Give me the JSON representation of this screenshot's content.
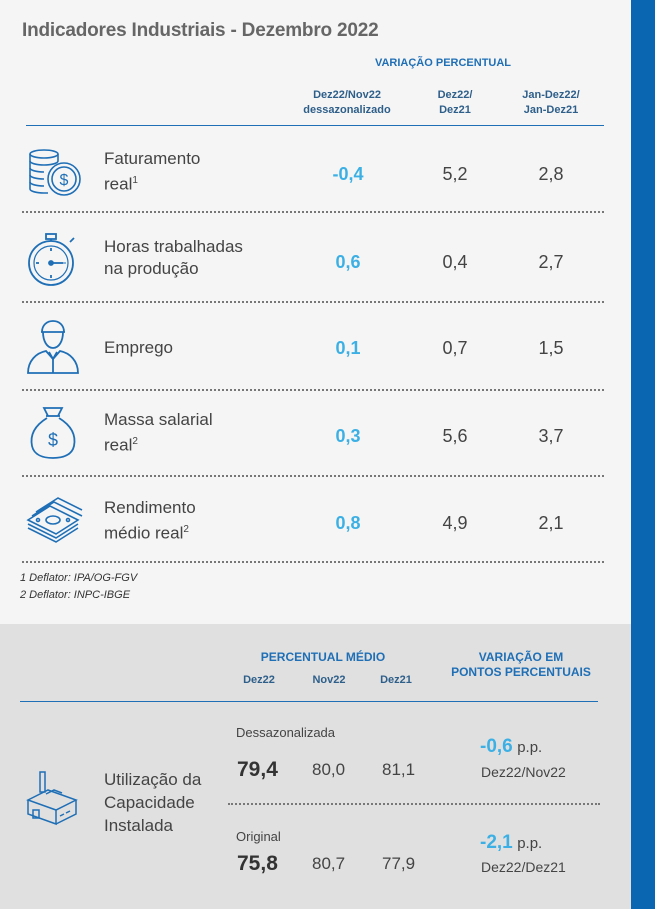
{
  "title": "Indicadores Industriais - Dezembro 2022",
  "variacao_header": "VARIAÇÃO PERCENTUAL",
  "columns": {
    "c1_line1": "Dez22/Nov22",
    "c1_line2": "dessazonalizado",
    "c2_line1": "Dez22/",
    "c2_line2": "Dez21",
    "c3_line1": "Jan-Dez22/",
    "c3_line2": "Jan-Dez21"
  },
  "rows": [
    {
      "icon": "coins-dollar-icon",
      "label1": "Faturamento",
      "label2": "real",
      "sup": "1",
      "v1": "-0,4",
      "v2": "5,2",
      "v3": "2,8"
    },
    {
      "icon": "stopwatch-icon",
      "label1": "Horas trabalhadas",
      "label2": "na produção",
      "sup": "",
      "v1": "0,6",
      "v2": "0,4",
      "v3": "2,7"
    },
    {
      "icon": "worker-person-icon",
      "label1": "Emprego",
      "label2": "",
      "sup": "",
      "v1": "0,1",
      "v2": "0,7",
      "v3": "1,5"
    },
    {
      "icon": "money-bag-icon",
      "label1": "Massa salarial",
      "label2": "real",
      "sup": "2",
      "v1": "0,3",
      "v2": "5,6",
      "v3": "3,7"
    },
    {
      "icon": "banknotes-stack-icon",
      "label1": "Rendimento",
      "label2": "médio real",
      "sup": "2",
      "v1": "0,8",
      "v2": "4,9",
      "v3": "2,1"
    }
  ],
  "footnotes": {
    "f1": "1 Deflator: IPA/OG-FGV",
    "f2": "2 Deflator: INPC-IBGE"
  },
  "capacidade": {
    "percentual_medio": "PERCENTUAL MÉDIO",
    "col_dez22": "Dez22",
    "col_nov22": "Nov22",
    "col_dez21": "Dez21",
    "variacao_l1": "VARIAÇÃO EM",
    "variacao_l2": "PONTOS PERCENTUAIS",
    "label_l1": "Utilização da",
    "label_l2": "Capacidade",
    "label_l3": "Instalada",
    "icon": "factory-icon",
    "dessaz": {
      "label": "Dessazonalizada",
      "dez22": "79,4",
      "nov22": "80,0",
      "dez21": "81,1",
      "pp_value": "-0,6",
      "pp_unit": "p.p.",
      "pp_period": "Dez22/Nov22"
    },
    "original": {
      "label": "Original",
      "dez22": "75,8",
      "nov22": "80,7",
      "dez21": "77,9",
      "pp_value": "-2,1",
      "pp_unit": "p.p.",
      "pp_period": "Dez22/Dez21"
    }
  },
  "colors": {
    "accent_blue": "#1f6fb6",
    "highlight_blue": "#3cb0e4",
    "sidebar_blue": "#0b66b2"
  }
}
